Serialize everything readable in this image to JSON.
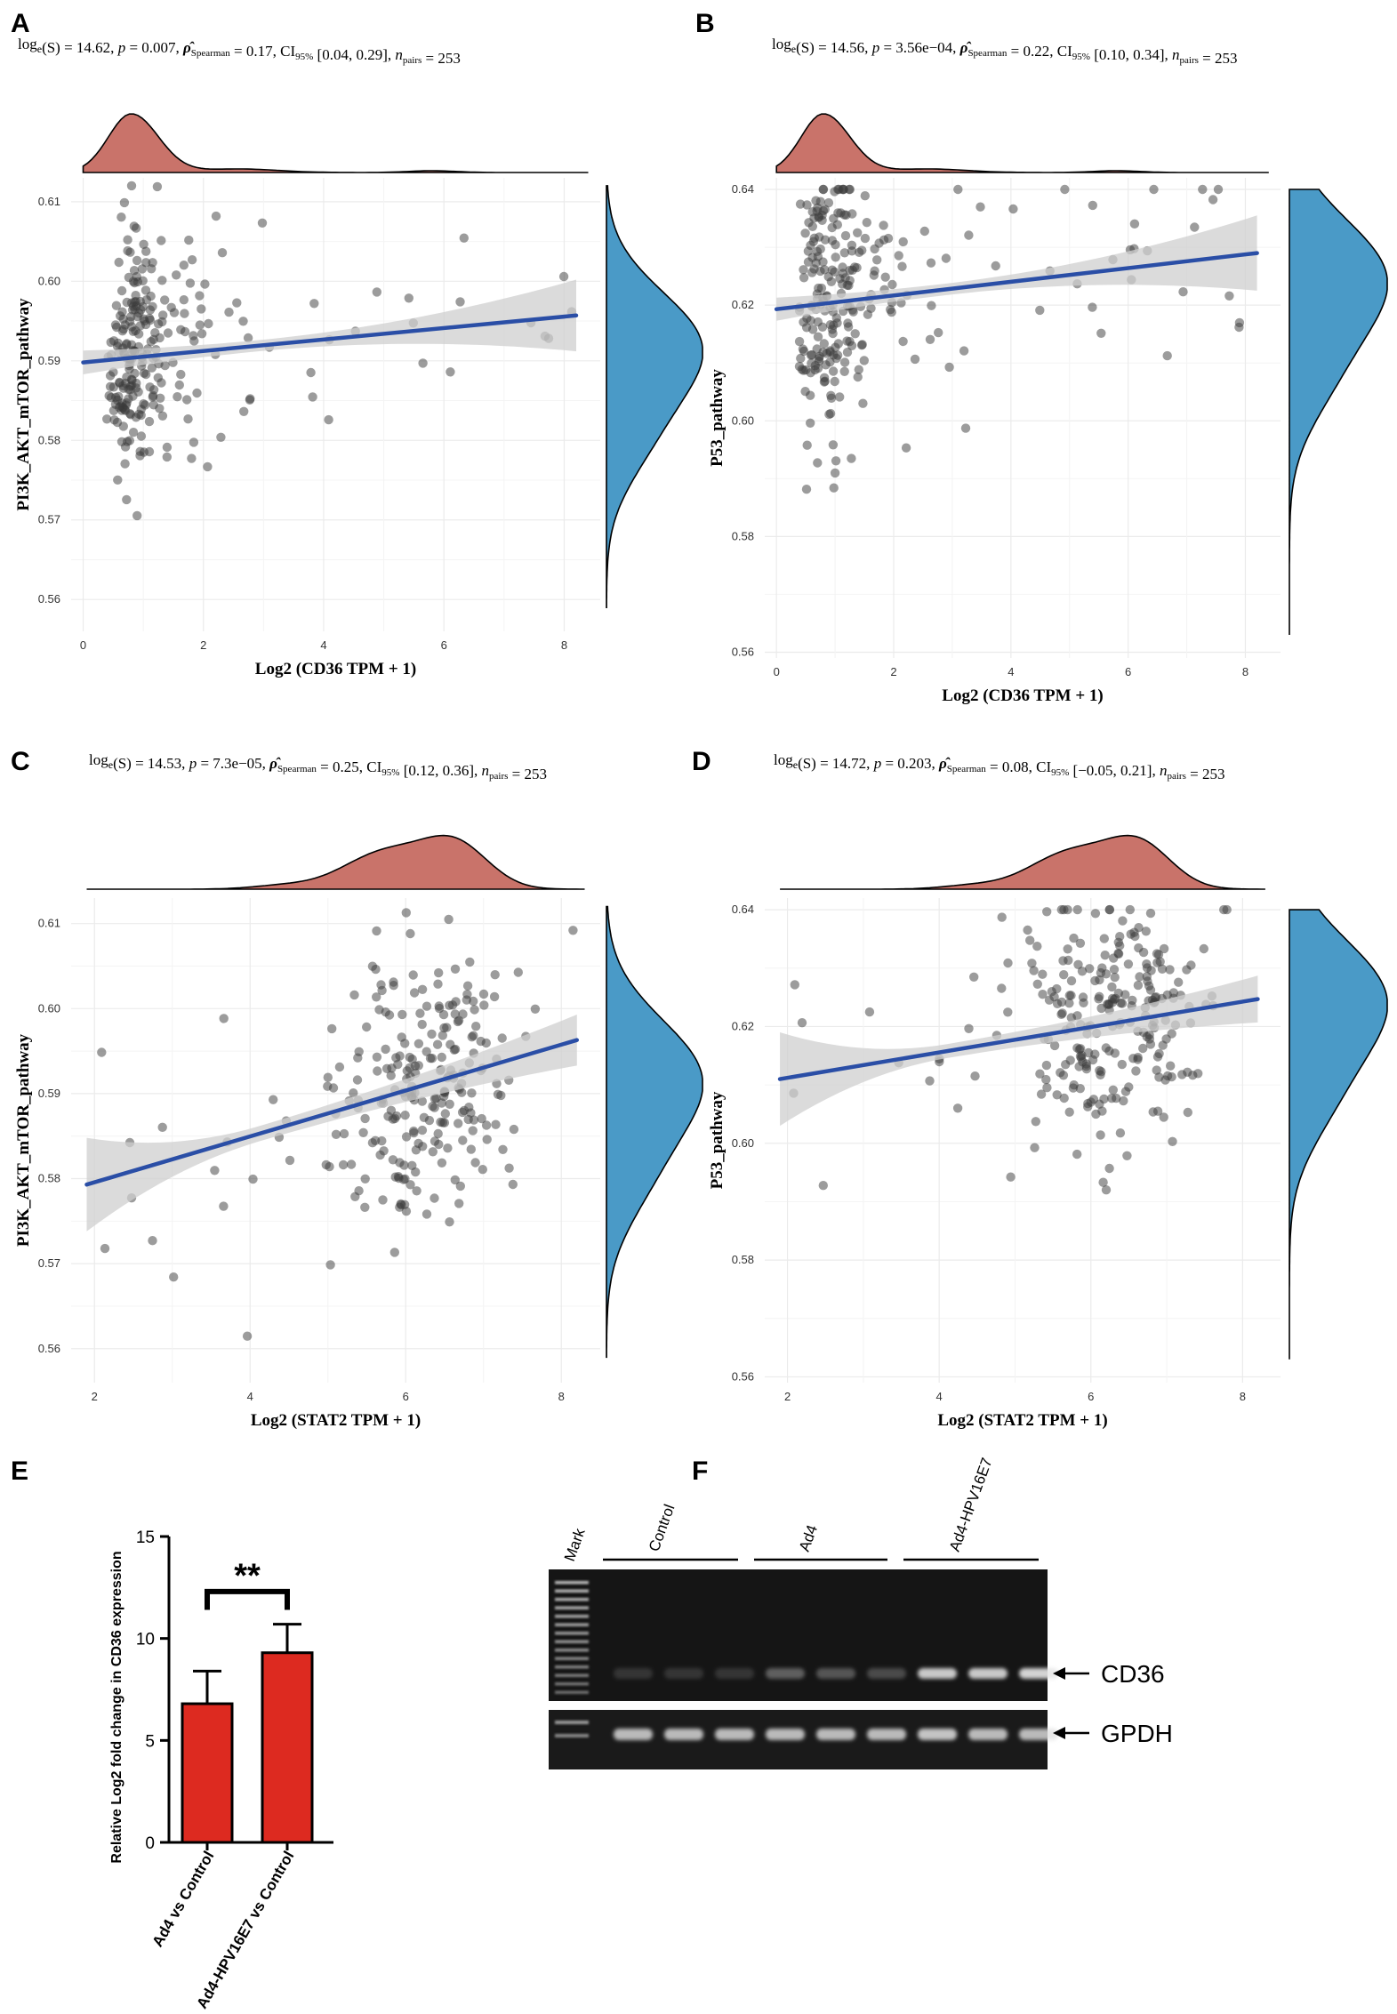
{
  "figure": {
    "panel_labels": [
      "A",
      "B",
      "C",
      "D",
      "E",
      "F"
    ]
  },
  "colors": {
    "density_x": "#c9736a",
    "density_y": "#4a9ac7",
    "points": "#3a3a3a",
    "fit_line": "#2a4ea6",
    "ci_band": "#cfcfcf",
    "grid": "#ebebeb",
    "bar": "#dd2a20"
  },
  "chart_data": [
    {
      "panel": "A",
      "type": "scatter",
      "stats_text": "logₑ(S) = 14.62, p = 0.007, ρ̂Spearman = 0.17, CI95% [0.04, 0.29], npairs = 253",
      "xlabel": "Log2 (CD36 TPM + 1)",
      "ylabel": "PI3K_AKT_mTOR_pathway",
      "xlim": [
        -0.2,
        8.6
      ],
      "ylim": [
        0.556,
        0.613
      ],
      "xticks": [
        0,
        2,
        4,
        6,
        8
      ],
      "yticks": [
        0.56,
        0.57,
        0.58,
        0.59,
        0.6,
        0.61
      ],
      "ytick_labels": [
        "0.56",
        "0.57",
        "0.58",
        "0.59",
        "0.60",
        "0.61"
      ],
      "fit": {
        "x0": 0.0,
        "y0": 0.5898,
        "x1": 8.2,
        "y1": 0.5957,
        "ci_half_start": 0.0015,
        "ci_half_mid": 0.0007,
        "ci_half_end": 0.0045
      },
      "x_density_peak": 0.8,
      "y_density_peak": 0.592,
      "n_pairs": 253,
      "seed": 11,
      "corr_slope": 0.0008,
      "x_dist": "cd36",
      "y_mean": 0.591,
      "y_sd": 0.0075,
      "y_clip": [
        0.559,
        0.612
      ]
    },
    {
      "panel": "B",
      "type": "scatter",
      "stats_text": "logₑ(S) = 14.56, p = 3.56e−04, ρ̂Spearman = 0.22, CI95% [0.10, 0.34], npairs = 253",
      "xlabel": "Log2 (CD36 TPM + 1)",
      "ylabel": "P53_pathway",
      "xlim": [
        -0.2,
        8.6
      ],
      "ylim": [
        0.559,
        0.642
      ],
      "xticks": [
        0,
        2,
        4,
        6,
        8
      ],
      "yticks": [
        0.56,
        0.58,
        0.6,
        0.62,
        0.64
      ],
      "ytick_labels": [
        "0.56",
        "0.58",
        "0.60",
        "0.62",
        "0.64"
      ],
      "fit": {
        "x0": 0.0,
        "y0": 0.6193,
        "x1": 8.2,
        "y1": 0.629,
        "ci_half_start": 0.002,
        "ci_half_mid": 0.001,
        "ci_half_end": 0.0065
      },
      "x_density_peak": 0.8,
      "y_density_peak": 0.625,
      "n_pairs": 253,
      "seed": 23,
      "corr_slope": 0.0012,
      "x_dist": "cd36",
      "y_mean": 0.621,
      "y_sd": 0.011,
      "y_clip": [
        0.563,
        0.64
      ]
    },
    {
      "panel": "C",
      "type": "scatter",
      "stats_text": "logₑ(S) = 14.53, p = 7.3e−05, ρ̂Spearman = 0.25, CI95% [0.12, 0.36], npairs = 253",
      "xlabel": "Log2 (STAT2 TPM + 1)",
      "ylabel": "PI3K_AKT_mTOR_pathway",
      "xlim": [
        1.7,
        8.5
      ],
      "ylim": [
        0.556,
        0.613
      ],
      "xticks": [
        2,
        4,
        6,
        8
      ],
      "yticks": [
        0.56,
        0.57,
        0.58,
        0.59,
        0.6,
        0.61
      ],
      "ytick_labels": [
        "0.56",
        "0.57",
        "0.58",
        "0.59",
        "0.60",
        "0.61"
      ],
      "fit": {
        "x0": 1.9,
        "y0": 0.5793,
        "x1": 8.2,
        "y1": 0.5963,
        "ci_half_start": 0.0055,
        "ci_half_mid": 0.0009,
        "ci_half_end": 0.003
      },
      "x_density_peak": 6.3,
      "y_density_peak": 0.592,
      "n_pairs": 253,
      "seed": 37,
      "corr_slope": 0.0028,
      "x_dist": "stat2",
      "y_mean": 0.591,
      "y_sd": 0.0075,
      "y_clip": [
        0.559,
        0.612
      ]
    },
    {
      "panel": "D",
      "type": "scatter",
      "stats_text": "logₑ(S) = 14.72, p = 0.203, ρ̂Spearman = 0.08, CI95% [−0.05, 0.21], npairs = 253",
      "xlabel": "Log2 (STAT2 TPM + 1)",
      "ylabel": "P53_pathway",
      "xlim": [
        1.7,
        8.5
      ],
      "ylim": [
        0.559,
        0.642
      ],
      "xticks": [
        2,
        4,
        6,
        8
      ],
      "yticks": [
        0.56,
        0.58,
        0.6,
        0.62,
        0.64
      ],
      "ytick_labels": [
        "0.56",
        "0.58",
        "0.60",
        "0.62",
        "0.64"
      ],
      "fit": {
        "x0": 1.9,
        "y0": 0.611,
        "x1": 8.2,
        "y1": 0.6247,
        "ci_half_start": 0.008,
        "ci_half_mid": 0.0012,
        "ci_half_end": 0.004
      },
      "x_density_peak": 6.3,
      "y_density_peak": 0.625,
      "n_pairs": 253,
      "seed": 53,
      "corr_slope": 0.0022,
      "x_dist": "stat2",
      "y_mean": 0.621,
      "y_sd": 0.011,
      "y_clip": [
        0.563,
        0.64
      ]
    },
    {
      "panel": "E",
      "type": "bar",
      "categories": [
        "Ad4 vs Control",
        "Ad4-HPV16E7 vs Control"
      ],
      "values": [
        6.8,
        9.3
      ],
      "errors": [
        1.6,
        1.4
      ],
      "ylabel": "Relative Log2 fold change in CD36 expression",
      "ylim": [
        0,
        15
      ],
      "yticks": [
        0,
        5,
        10,
        15
      ],
      "significance": "**"
    },
    {
      "panel": "F",
      "type": "gel",
      "ladder_label": "Mark",
      "groups": [
        "Control",
        "Ad4",
        "Ad4-HPV16E7"
      ],
      "bands": [
        "CD36",
        "GPDH"
      ],
      "cd36_intensity": [
        0.15,
        0.15,
        0.15,
        0.35,
        0.3,
        0.25,
        0.85,
        0.85,
        0.9
      ],
      "gpdh_intensity": [
        0.8,
        0.8,
        0.8,
        0.8,
        0.8,
        0.8,
        0.85,
        0.8,
        0.8
      ]
    }
  ]
}
